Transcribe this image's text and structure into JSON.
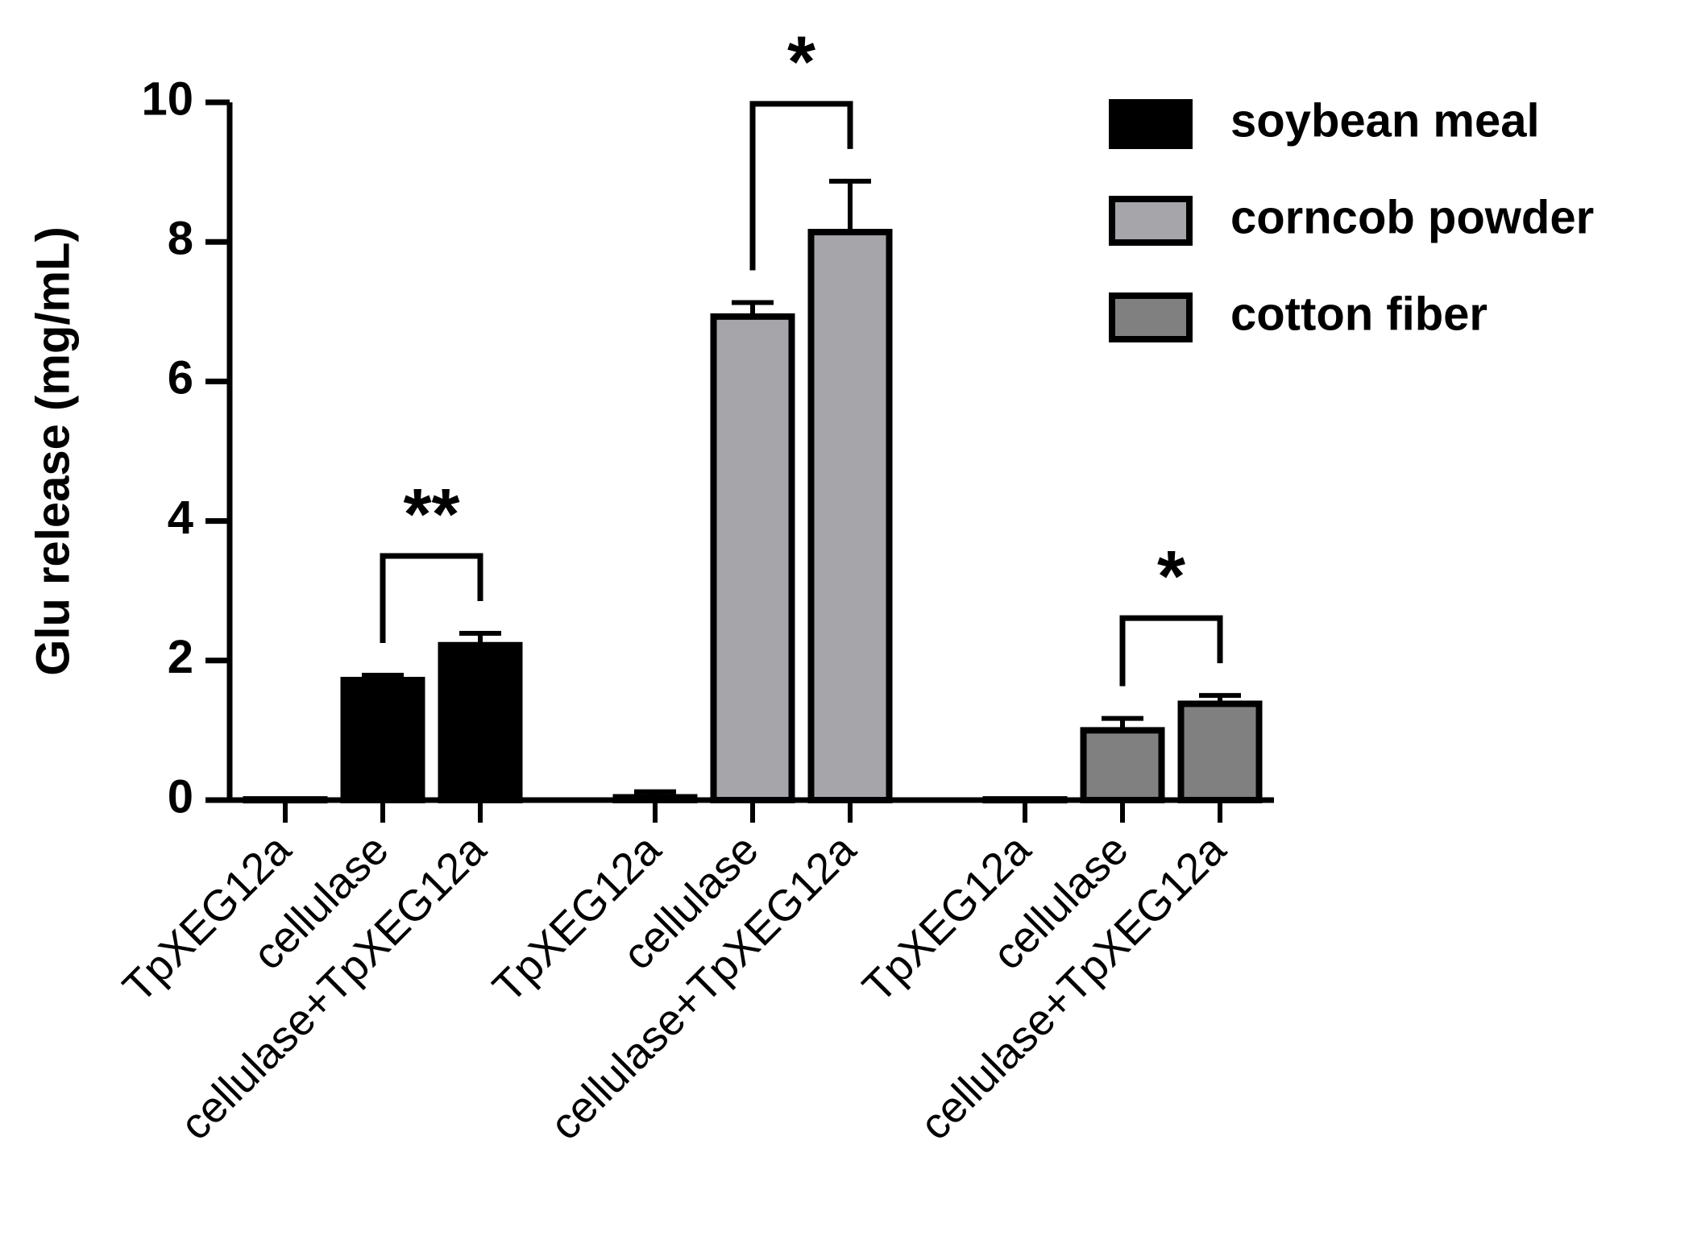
{
  "chart_data": {
    "type": "bar",
    "y_label": "Glu release (mg/mL)",
    "categories": [
      "TpXEG12a",
      "cellulase",
      "cellulase+TpXEG12a",
      "TpXEG12a",
      "cellulase",
      "cellulase+TpXEG12a",
      "TpXEG12a",
      "cellulase",
      "cellulase+TpXEG12a"
    ],
    "series": [
      {
        "name": "soybean meal",
        "color": "#000000",
        "values": [
          0.01,
          1.72,
          2.22,
          null,
          null,
          null,
          null,
          null,
          null
        ],
        "errors": [
          0,
          0.07,
          0.17,
          null,
          null,
          null,
          null,
          null,
          null
        ]
      },
      {
        "name": "corncob powder",
        "color": "#a6a6aa",
        "values": [
          null,
          null,
          null,
          0.04,
          6.93,
          8.14,
          null,
          null,
          null
        ],
        "errors": [
          null,
          null,
          null,
          0.08,
          0.2,
          0.73,
          null,
          null,
          null
        ]
      },
      {
        "name": "cotton fiber",
        "color": "#808080",
        "values": [
          null,
          null,
          null,
          null,
          null,
          null,
          0.01,
          1.0,
          1.38
        ],
        "errors": [
          null,
          null,
          null,
          null,
          null,
          null,
          0,
          0.17,
          0.12
        ]
      }
    ],
    "significance": [
      {
        "text": "**",
        "from": 1,
        "to": 2
      },
      {
        "text": "*",
        "from": 4,
        "to": 5
      },
      {
        "text": "*",
        "from": 7,
        "to": 8
      }
    ],
    "ylim": [
      0,
      10
    ],
    "yticks": [
      0,
      2,
      4,
      6,
      8,
      10
    ],
    "legend": "top-right"
  }
}
